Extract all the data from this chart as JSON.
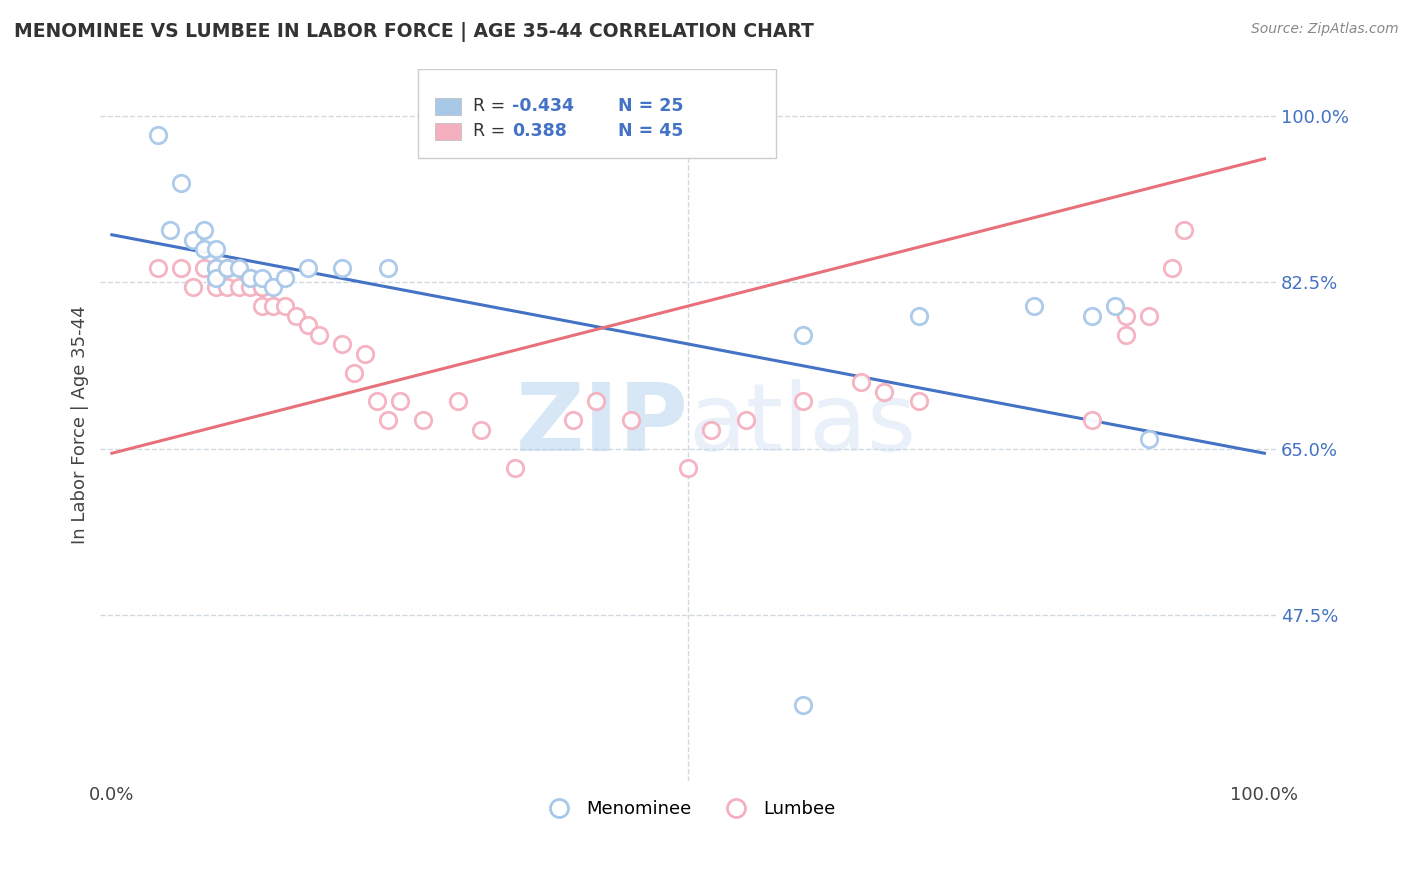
{
  "title": "MENOMINEE VS LUMBEE IN LABOR FORCE | AGE 35-44 CORRELATION CHART",
  "source_text": "Source: ZipAtlas.com",
  "ylabel": "In Labor Force | Age 35-44",
  "xlim": [
    0.0,
    1.0
  ],
  "ylim": [
    0.3,
    1.05
  ],
  "ytick_labels": [
    "47.5%",
    "65.0%",
    "82.5%",
    "100.0%"
  ],
  "ytick_values": [
    0.475,
    0.65,
    0.825,
    1.0
  ],
  "menominee_R": -0.434,
  "menominee_N": 25,
  "lumbee_R": 0.388,
  "lumbee_N": 45,
  "menominee_color": "#a8c8e8",
  "lumbee_color": "#f4b0be",
  "menominee_line_color": "#4472c4",
  "lumbee_line_color": "#e8707a",
  "background_color": "#ffffff",
  "grid_color": "#d0d8e0",
  "watermark_zip": "ZIP",
  "watermark_atlas": "atlas",
  "menominee_line_y0": 0.875,
  "menominee_line_y1": 0.645,
  "lumbee_line_y0": 0.645,
  "lumbee_line_y1": 0.955,
  "menominee_x": [
    0.04,
    0.05,
    0.06,
    0.07,
    0.08,
    0.08,
    0.09,
    0.09,
    0.09,
    0.1,
    0.11,
    0.12,
    0.13,
    0.14,
    0.15,
    0.17,
    0.2,
    0.24,
    0.6,
    0.7,
    0.8,
    0.85,
    0.87,
    0.9,
    0.6
  ],
  "menominee_y": [
    0.98,
    0.88,
    0.93,
    0.87,
    0.88,
    0.86,
    0.84,
    0.83,
    0.86,
    0.84,
    0.84,
    0.83,
    0.83,
    0.82,
    0.83,
    0.84,
    0.84,
    0.84,
    0.77,
    0.79,
    0.8,
    0.79,
    0.8,
    0.66,
    0.38
  ],
  "lumbee_x": [
    0.04,
    0.06,
    0.07,
    0.08,
    0.09,
    0.09,
    0.1,
    0.1,
    0.11,
    0.12,
    0.12,
    0.13,
    0.13,
    0.13,
    0.14,
    0.15,
    0.16,
    0.17,
    0.18,
    0.2,
    0.21,
    0.22,
    0.23,
    0.24,
    0.25,
    0.27,
    0.3,
    0.32,
    0.35,
    0.4,
    0.42,
    0.45,
    0.5,
    0.52,
    0.55,
    0.6,
    0.65,
    0.67,
    0.7,
    0.85,
    0.88,
    0.88,
    0.9,
    0.92,
    0.93
  ],
  "lumbee_y": [
    0.84,
    0.84,
    0.82,
    0.84,
    0.82,
    0.84,
    0.84,
    0.82,
    0.82,
    0.83,
    0.82,
    0.82,
    0.8,
    0.82,
    0.8,
    0.8,
    0.79,
    0.78,
    0.77,
    0.76,
    0.73,
    0.75,
    0.7,
    0.68,
    0.7,
    0.68,
    0.7,
    0.67,
    0.63,
    0.68,
    0.7,
    0.68,
    0.63,
    0.67,
    0.68,
    0.7,
    0.72,
    0.71,
    0.7,
    0.68,
    0.77,
    0.79,
    0.79,
    0.84,
    0.88
  ]
}
